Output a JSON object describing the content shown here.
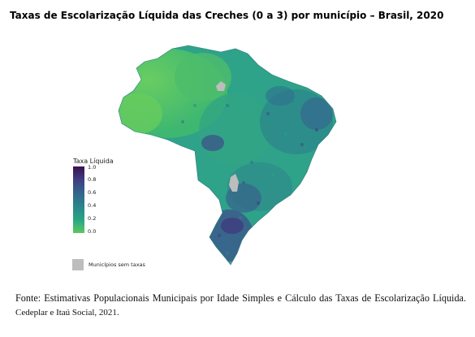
{
  "title": "Taxas de Escolarização Líquida das Creches (0 a 3) por município – Brasil, 2020",
  "legend": {
    "title": "Taxa Líquida",
    "ticks": [
      "1.0",
      "0.8",
      "0.6",
      "0.4",
      "0.2",
      "0.0"
    ],
    "no_data_label": "Municípios sem taxas",
    "colors": {
      "high": "#3b0f4f",
      "mid_high": "#3e3f82",
      "mid": "#2a858b",
      "low": "#5cc862",
      "no_data": "#bdbdbd"
    }
  },
  "source": {
    "lead": "Fonte: Estimativas Populacionais Municipais por Idade Simples e Cálculo das Taxas de Escolarização Líquida.",
    "tail": "Cedeplar e Itaú Social, 2021."
  }
}
